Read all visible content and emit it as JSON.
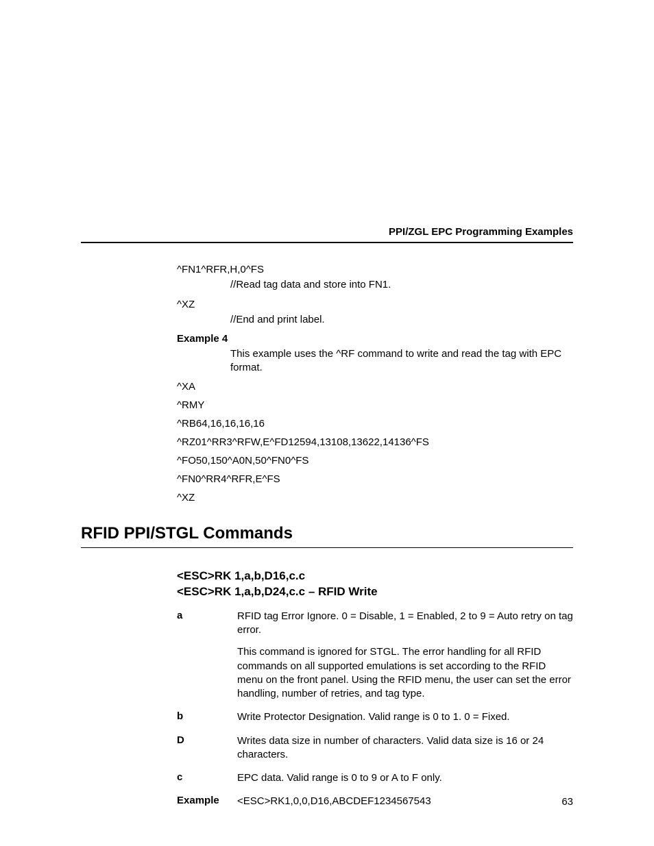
{
  "header": {
    "title": "PPI/ZGL EPC Programming Examples"
  },
  "top_block": {
    "items": [
      {
        "cmd": "^FN1^RFR,H,0^FS",
        "desc": "//Read tag data and store into FN1."
      },
      {
        "cmd": "^XZ",
        "desc": "//End and print label."
      }
    ],
    "example_label": "Example 4",
    "example_desc": "This example uses the ^RF command to write and read the tag with EPC format.",
    "code_lines": [
      "^XA",
      "^RMY",
      "^RB64,16,16,16,16",
      "^RZ01^RR3^RFW,E^FD12594,13108,13622,14136^FS",
      "^FO50,150^A0N,50^FN0^FS",
      "^FN0^RR4^RFR,E^FS",
      "^XZ"
    ]
  },
  "section": {
    "heading": "RFID PPI/STGL Commands",
    "sub_line1": "<ESC>RK 1,a,b,D16,c.c",
    "sub_line2": "<ESC>RK 1,a,b,D24,c.c – RFID Write",
    "params": [
      {
        "label": "a",
        "paras": [
          "RFID tag Error Ignore. 0 = Disable, 1 = Enabled, 2 to 9 = Auto retry on tag error.",
          "This command is ignored for STGL. The error handling for all RFID commands on all supported emulations is set according to the RFID menu on the front panel. Using the RFID menu, the user can set the error handling, number of retries, and tag type."
        ]
      },
      {
        "label": "b",
        "paras": [
          "Write Protector Designation. Valid range is 0 to 1. 0 = Fixed."
        ]
      },
      {
        "label": "D",
        "paras": [
          "Writes data size in number of characters. Valid data size is 16 or 24 characters."
        ]
      },
      {
        "label": "c",
        "paras": [
          "EPC data. Valid range is 0 to 9 or A to F only."
        ]
      },
      {
        "label": "Example",
        "paras": [
          "<ESC>RK1,0,0,D16,ABCDEF1234567543"
        ]
      }
    ]
  },
  "page_number": "63"
}
